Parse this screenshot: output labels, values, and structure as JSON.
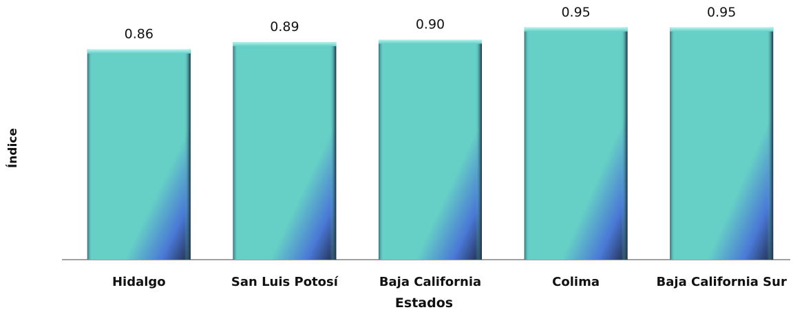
{
  "chart_data": {
    "type": "bar",
    "categories": [
      "Hidalgo",
      "San Luis Potosí",
      "Baja California",
      "Colima",
      "Baja California Sur"
    ],
    "values": [
      0.86,
      0.89,
      0.9,
      0.95,
      0.95
    ],
    "value_labels": [
      "0.86",
      "0.89",
      "0.90",
      "0.95",
      "0.95"
    ],
    "xlabel": "Estados",
    "ylabel": "Índice",
    "colors": {
      "bar_main": "#66CFC6",
      "bar_top": "#8FE6DF",
      "bar_shadow": "#1F2A44",
      "bar_accent": "#4A78D6",
      "axis": "#808080",
      "text": "#111111"
    },
    "grid": false,
    "legend": "none"
  }
}
